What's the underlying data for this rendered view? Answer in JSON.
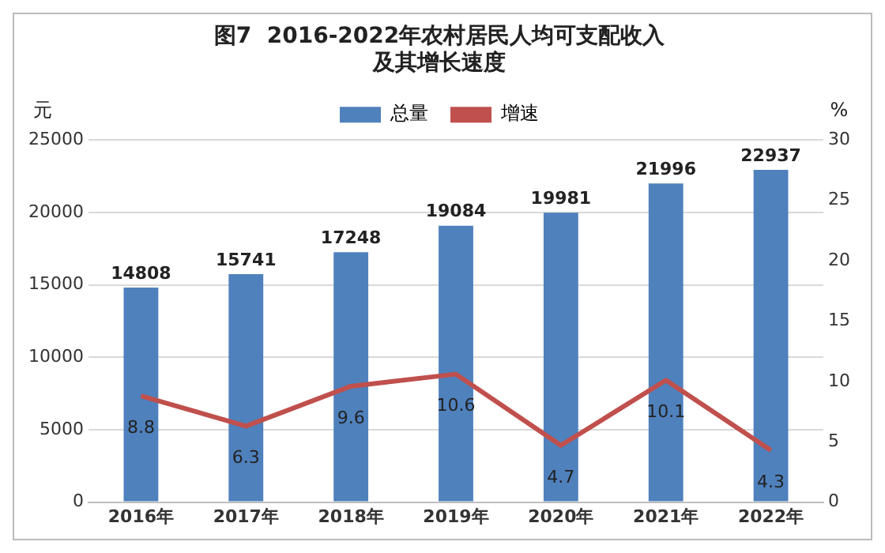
{
  "chart_data": {
    "type": "bar",
    "title": "图7  2016-2022年农村居民人均可支配收入及其增长速度",
    "ylabel": "元",
    "y2label": "%",
    "categories": [
      "2016年",
      "2017年",
      "2018年",
      "2019年",
      "2020年",
      "2021年",
      "2022年"
    ],
    "series": [
      {
        "name": "总量",
        "color": "#4f81bd",
        "values": [
          14808,
          15741,
          17248,
          19084,
          19981,
          21996,
          22937
        ]
      },
      {
        "name": "增速",
        "type": "line",
        "axis": "y2",
        "color": "#c0504d",
        "values": [
          8.8,
          6.3,
          9.6,
          10.6,
          4.7,
          10.1,
          4.3
        ]
      }
    ],
    "ylim": [
      0,
      25000
    ],
    "yticks": [
      0,
      5000,
      10000,
      15000,
      20000,
      25000
    ],
    "y2lim": [
      0,
      30
    ],
    "y2ticks": [
      0,
      5,
      10,
      15,
      20,
      25,
      30
    ],
    "grid": "y",
    "legend": "top",
    "marker": "none",
    "line_style": "solid",
    "data_labels": true
  }
}
